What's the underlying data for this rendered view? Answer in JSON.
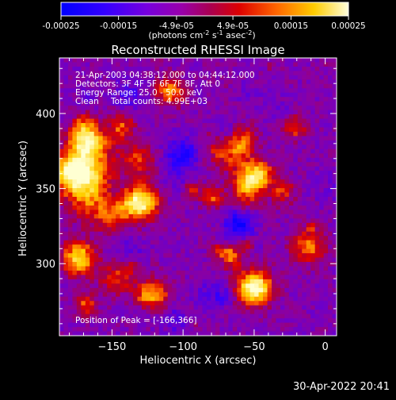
{
  "colorbar": {
    "ticks": [
      "-0.00025",
      "-0.00015",
      "-4.9e-05",
      "4.9e-05",
      "0.00015",
      "0.00025"
    ],
    "tick_values": [
      -0.00025,
      -0.00015,
      -4.9e-05,
      4.9e-05,
      0.00015,
      0.00025
    ],
    "range": [
      -0.00025,
      0.00025
    ],
    "units_prefix": "(photons cm",
    "units_exp1": "-2",
    "units_mid": " s",
    "units_exp2": "-1",
    "units_mid2": " asec",
    "units_exp3": "-2",
    "units_suffix": ")",
    "colormap": [
      "#0000ff",
      "#5500ff",
      "#8800cc",
      "#aa0080",
      "#cc0000",
      "#ff6600",
      "#ffcc00",
      "#ffffcc"
    ]
  },
  "chart_data": {
    "type": "heatmap",
    "title": "Reconstructed RHESSI Image",
    "xlabel": "Heliocentric X (arcsec)",
    "ylabel": "Heliocentric Y (arcsec)",
    "xlim": [
      -187,
      8
    ],
    "ylim": [
      252,
      437
    ],
    "x_ticks": [
      -150,
      -100,
      -50,
      0
    ],
    "x_tick_labels": [
      "−150",
      "−100",
      "−50",
      "0"
    ],
    "y_ticks": [
      300,
      350,
      400
    ],
    "y_tick_labels": [
      "300",
      "350",
      "400"
    ],
    "annotations": [
      "21-Apr-2003 04:38:12.000 to 04:44:12.000",
      "Detectors: 3F 4F 5F 6F 7F 8F, Att 0",
      "Energy Range: 25.0 - 50.0 keV",
      "Clean",
      "Total counts: 4.99E+03"
    ],
    "peak_label": "Position of Peak = [-166,366]",
    "peak": [
      -166,
      366
    ],
    "grid": false
  },
  "footer": {
    "timestamp": "30-Apr-2022 20:41"
  }
}
